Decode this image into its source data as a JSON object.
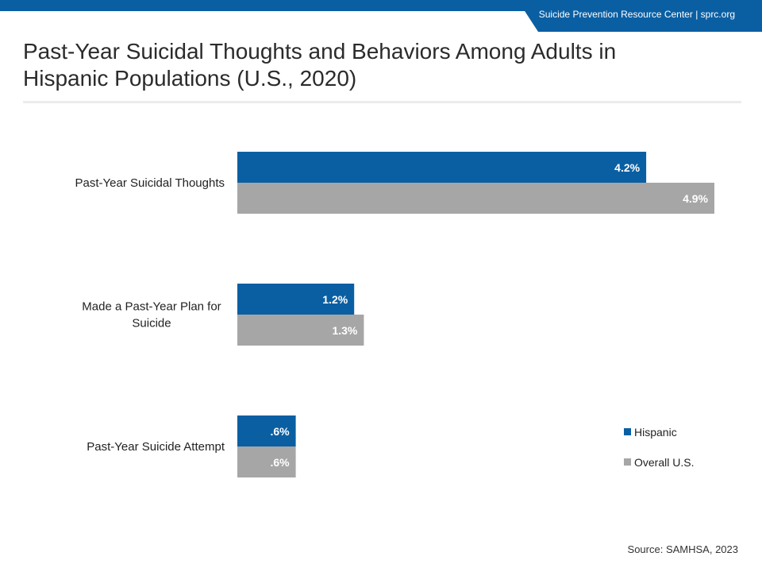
{
  "header": {
    "text": "Suicide Prevention Resource Center  |  sprc.org"
  },
  "page_title": "Past-Year Suicidal Thoughts and Behaviors Among Adults in Hispanic Populations (U.S., 2020)",
  "source": "Source: SAMHSA, 2023",
  "colors": {
    "brand": "#0a5fa3",
    "hispanic": "#0a5fa3",
    "overall": "#a6a6a6"
  },
  "chart_data": {
    "type": "bar",
    "orientation": "horizontal",
    "title": "Past-Year Suicidal Thoughts and Behaviors Among Adults in Hispanic Populations (U.S., 2020)",
    "categories": [
      [
        "Past-Year Suicidal Thoughts"
      ],
      [
        "Made a Past-Year Plan for",
        "Suicide"
      ],
      [
        "Past-Year Suicide Attempt"
      ]
    ],
    "series": [
      {
        "name": "Hispanic",
        "values": [
          4.2,
          1.2,
          0.6
        ],
        "labels": [
          "4.2%",
          "1.2%",
          ".6%"
        ],
        "color": "#0a5fa3"
      },
      {
        "name": "Overall U.S.",
        "values": [
          4.9,
          1.3,
          0.6
        ],
        "labels": [
          "4.9%",
          "1.3%",
          ".6%"
        ],
        "color": "#a6a6a6"
      }
    ],
    "unit": "%",
    "xlim": [
      0,
      4.9
    ],
    "grid": false,
    "legend": "bottom-right"
  }
}
